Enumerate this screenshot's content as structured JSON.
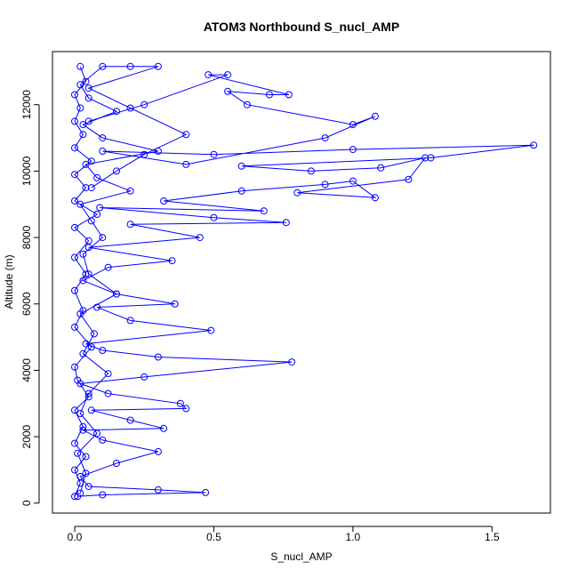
{
  "chart_data": {
    "type": "line",
    "title": "ATOM3 Northbound S_nucl_AMP",
    "xlabel": "S_nucl_AMP",
    "ylabel": "Altitude (m)",
    "xlim": [
      -0.08,
      1.71
    ],
    "ylim": [
      -300,
      13600
    ],
    "x_ticks": [
      0.0,
      0.5,
      1.0,
      1.5
    ],
    "x_tick_labels": [
      "0.0",
      "0.5",
      "1.0",
      "1.5"
    ],
    "y_ticks": [
      0,
      2000,
      4000,
      6000,
      8000,
      10000,
      12000
    ],
    "y_tick_labels": [
      "0",
      "2000",
      "4000",
      "6000",
      "8000",
      "10000",
      "12000"
    ],
    "grid": false,
    "legend": "none",
    "marker": "open-circle",
    "color": "#0000ff",
    "series": [
      {
        "points": [
          [
            0.02,
            300
          ],
          [
            0.04,
            900
          ],
          [
            0.01,
            1500
          ],
          [
            0.08,
            2100
          ],
          [
            0.02,
            2700
          ],
          [
            0.05,
            3300
          ],
          [
            0.12,
            3900
          ],
          [
            0.03,
            4500
          ],
          [
            0.07,
            5100
          ],
          [
            0.02,
            5700
          ],
          [
            0.15,
            6300
          ],
          [
            0.05,
            6900
          ],
          [
            0.03,
            7500
          ],
          [
            0.1,
            8000
          ],
          [
            0.06,
            8500
          ],
          [
            0.02,
            9000
          ],
          [
            0.2,
            9400
          ],
          [
            0.08,
            9800
          ],
          [
            0.04,
            10200
          ],
          [
            0.3,
            10600
          ],
          [
            0.1,
            11000
          ],
          [
            0.03,
            11400
          ],
          [
            0.15,
            11800
          ],
          [
            0.05,
            12200
          ],
          [
            0.02,
            12600
          ],
          [
            0.1,
            13150
          ],
          [
            0.2,
            13150
          ],
          [
            0.3,
            13150
          ],
          [
            0.05,
            12500
          ],
          [
            0.2,
            11900
          ],
          [
            0.4,
            11100
          ],
          [
            0.25,
            10500
          ],
          [
            0.15,
            10000
          ],
          [
            0.06,
            9500
          ]
        ]
      },
      {
        "points": [
          [
            0.01,
            200
          ],
          [
            0.1,
            250
          ],
          [
            0.47,
            320
          ],
          [
            0.3,
            400
          ],
          [
            0.05,
            500
          ],
          [
            0.02,
            800
          ],
          [
            0.15,
            1200
          ],
          [
            0.3,
            1550
          ],
          [
            0.1,
            1900
          ],
          [
            0.03,
            2200
          ],
          [
            0.32,
            2250
          ],
          [
            0.2,
            2500
          ],
          [
            0.06,
            2800
          ],
          [
            0.4,
            2850
          ],
          [
            0.38,
            3000
          ],
          [
            0.12,
            3300
          ],
          [
            0.02,
            3600
          ],
          [
            0.25,
            3800
          ],
          [
            0.78,
            4250
          ],
          [
            0.3,
            4400
          ],
          [
            0.1,
            4600
          ],
          [
            0.04,
            4800
          ],
          [
            0.49,
            5200
          ],
          [
            0.2,
            5500
          ],
          [
            0.08,
            5900
          ],
          [
            0.36,
            6000
          ],
          [
            0.15,
            6300
          ],
          [
            0.03,
            6700
          ],
          [
            0.12,
            7100
          ],
          [
            0.35,
            7300
          ],
          [
            0.05,
            7700
          ],
          [
            0.45,
            8000
          ],
          [
            0.2,
            8400
          ],
          [
            0.76,
            8450
          ],
          [
            0.5,
            8600
          ],
          [
            0.09,
            8900
          ],
          [
            0.68,
            8800
          ],
          [
            0.32,
            9100
          ],
          [
            0.6,
            9400
          ],
          [
            0.9,
            9600
          ],
          [
            1.0,
            9700
          ],
          [
            1.08,
            9200
          ],
          [
            0.8,
            9350
          ],
          [
            1.2,
            9750
          ],
          [
            1.26,
            10400
          ],
          [
            1.1,
            10100
          ],
          [
            0.85,
            10000
          ],
          [
            0.6,
            10150
          ],
          [
            1.28,
            10400
          ],
          [
            1.65,
            10780
          ],
          [
            1.0,
            10650
          ],
          [
            0.5,
            10500
          ],
          [
            0.1,
            10600
          ],
          [
            0.4,
            10200
          ],
          [
            0.9,
            11000
          ],
          [
            1.08,
            11650
          ],
          [
            1.0,
            11400
          ],
          [
            0.62,
            12000
          ],
          [
            0.55,
            12400
          ],
          [
            0.7,
            12300
          ],
          [
            0.77,
            12300
          ],
          [
            0.48,
            12900
          ],
          [
            0.55,
            12900
          ],
          [
            0.25,
            12000
          ],
          [
            0.05,
            11500
          ]
        ]
      },
      {
        "points": [
          [
            0.0,
            200
          ],
          [
            0.02,
            600
          ],
          [
            0.0,
            1000
          ],
          [
            0.04,
            1400
          ],
          [
            0.0,
            1800
          ],
          [
            0.03,
            2300
          ],
          [
            0.0,
            2800
          ],
          [
            0.05,
            3200
          ],
          [
            0.01,
            3700
          ],
          [
            0.0,
            4100
          ],
          [
            0.06,
            4700
          ],
          [
            0.0,
            5300
          ],
          [
            0.03,
            5800
          ],
          [
            0.0,
            6400
          ],
          [
            0.04,
            6900
          ],
          [
            0.0,
            7400
          ],
          [
            0.05,
            7900
          ],
          [
            0.0,
            8300
          ],
          [
            0.08,
            8700
          ],
          [
            0.0,
            9100
          ],
          [
            0.04,
            9500
          ],
          [
            0.0,
            9900
          ],
          [
            0.06,
            10300
          ],
          [
            0.0,
            10700
          ],
          [
            0.03,
            11100
          ],
          [
            0.0,
            11500
          ],
          [
            0.02,
            11900
          ],
          [
            0.0,
            12300
          ],
          [
            0.04,
            12700
          ],
          [
            0.02,
            13150
          ]
        ]
      }
    ]
  }
}
